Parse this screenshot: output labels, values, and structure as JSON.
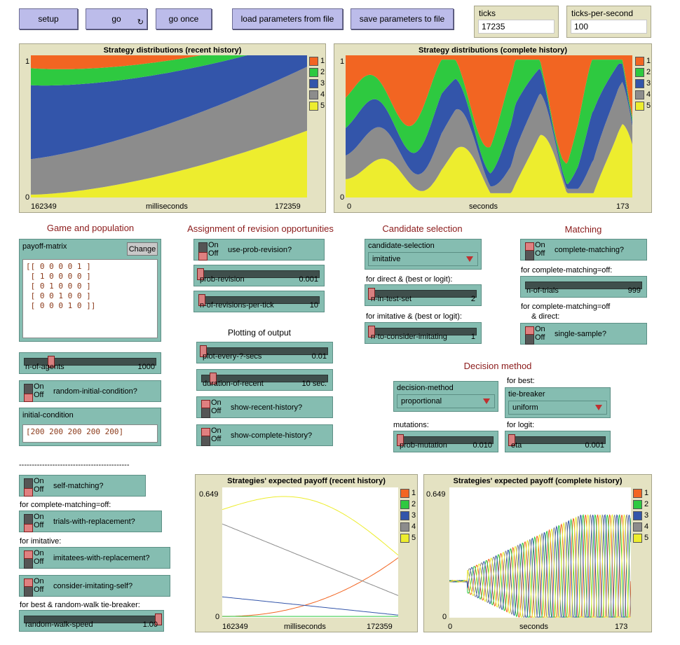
{
  "buttons": {
    "setup": "setup",
    "go": "go",
    "go_once": "go once",
    "load": "load parameters from file",
    "save": "save parameters to file"
  },
  "monitors": {
    "ticks_label": "ticks",
    "ticks_value": "17235",
    "tps_label": "ticks-per-second",
    "tps_value": "100"
  },
  "colors": {
    "s1": "#f26522",
    "s2": "#2ec940",
    "s3": "#3355aa",
    "s4": "#8c8c8c",
    "s5": "#eded2e"
  },
  "legend": [
    "1",
    "2",
    "3",
    "4",
    "5"
  ],
  "plots": {
    "dist_recent": {
      "title": "Strategy distributions (recent history)",
      "ymax": "1",
      "ymin": "0",
      "xmin": "162349",
      "xmax": "172359",
      "xlabel": "milliseconds"
    },
    "dist_complete": {
      "title": "Strategy distributions (complete history)",
      "ymax": "1",
      "ymin": "0",
      "xmin": "0",
      "xmax": "173",
      "xlabel": "seconds"
    },
    "payoff_recent": {
      "title": "Strategies' expected payoff (recent history)",
      "ymax": "0.649",
      "ymin": "0",
      "xmin": "162349",
      "xmax": "172359",
      "xlabel": "milliseconds"
    },
    "payoff_complete": {
      "title": "Strategies' expected payoff (complete history)",
      "ymax": "0.649",
      "ymin": "0",
      "xmin": "0",
      "xmax": "173",
      "xlabel": "seconds"
    }
  },
  "sections": {
    "game": "Game and population",
    "assignment": "Assignment of revision opportunities",
    "candidate": "Candidate selection",
    "matching": "Matching",
    "plotting": "Plotting of output",
    "decision": "Decision method"
  },
  "switch_text": {
    "on": "On",
    "off": "Off"
  },
  "payoff_matrix": {
    "label": "payoff-matrix",
    "change": "Change",
    "text": "[[ 0 0 0 0 1 ]\n [ 1 0 0 0 0 ]\n [ 0 1 0 0 0 ]\n [ 0 0 1 0 0 ]\n [ 0 0 0 1 0 ]]"
  },
  "n_of_agents": {
    "label": "n-of-agents",
    "value": "1000"
  },
  "random_initial": {
    "label": "random-initial-condition?"
  },
  "initial_condition": {
    "label": "initial-condition",
    "value": "[200 200 200 200 200]"
  },
  "use_prob_revision": {
    "label": "use-prob-revision?"
  },
  "prob_revision": {
    "label": "prob-revision",
    "value": "0.001"
  },
  "n_revisions": {
    "label": "n-of-revisions-per-tick",
    "value": "10"
  },
  "plot_every": {
    "label": "plot-every-?-secs",
    "value": "0.01"
  },
  "duration_recent": {
    "label": "duration-of-recent",
    "value": "10 sec."
  },
  "show_recent": {
    "label": "show-recent-history?"
  },
  "show_complete": {
    "label": "show-complete-history?"
  },
  "candidate_selection": {
    "label": "candidate-selection",
    "value": "imitative"
  },
  "notes": {
    "direct_best": "for direct & (best or logit):",
    "imitative_best": "for imitative & (best or logit):",
    "cm_off": "for complete-matching=off:",
    "cm_off_direct1": "for complete-matching=off",
    "cm_off_direct2": "& direct:",
    "for_best": "for best:",
    "mutations": "mutations:",
    "for_logit": "for logit:",
    "cm_off2": "for complete-matching=off:",
    "for_imitative": "for imitative:",
    "best_rw": "for best & random-walk tie-breaker:"
  },
  "n_in_test_set": {
    "label": "n-in-test-set",
    "value": "2"
  },
  "n_to_consider": {
    "label": "n-to-consider-imitating",
    "value": "1"
  },
  "complete_matching": {
    "label": "complete-matching?"
  },
  "n_of_trials": {
    "label": "n-of-trials",
    "value": "999"
  },
  "single_sample": {
    "label": "single-sample?"
  },
  "decision_method": {
    "label": "decision-method",
    "value": "proportional"
  },
  "tie_breaker": {
    "label": "tie-breaker",
    "value": "uniform"
  },
  "prob_mutation": {
    "label": "prob-mutation",
    "value": "0.010"
  },
  "eta": {
    "label": "eta",
    "value": "0.001"
  },
  "divider": "-------------------------------------------",
  "self_matching": {
    "label": "self-matching?"
  },
  "trials_replacement": {
    "label": "trials-with-replacement?"
  },
  "imitatees_replacement": {
    "label": "imitatees-with-replacement?"
  },
  "consider_self": {
    "label": "consider-imitating-self?"
  },
  "random_walk_speed": {
    "label": "random-walk-speed",
    "value": "1.00"
  }
}
